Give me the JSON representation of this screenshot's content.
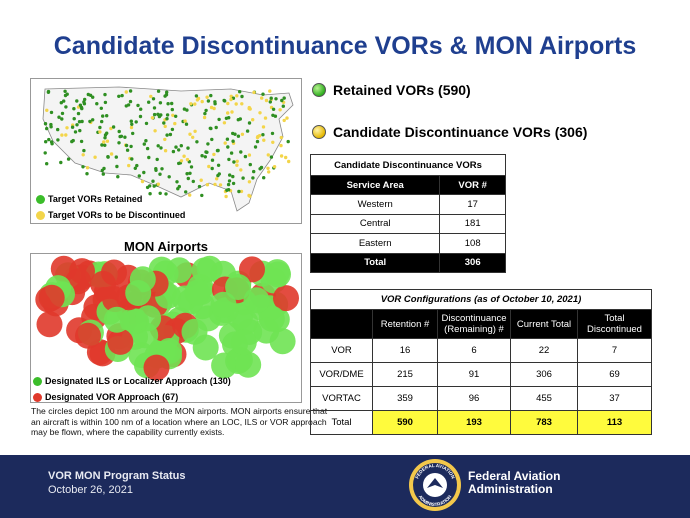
{
  "title": "Candidate Discontinuance VORs & MON Airports",
  "map1": {
    "legend_retained": "Target VORs Retained",
    "legend_discontinued": "Target VORs to be Discontinued"
  },
  "map2": {
    "title": "MON Airports",
    "legend_ils": "Designated ILS or Localizer Approach (130)",
    "legend_vor": "Designated VOR Approach (67)"
  },
  "caption": "The circles depict 100 nm around the MON airports. MON airports ensure that an aircraft is within 100 nm of a location where an LOC, ILS or VOR approach may be flown, where the capability currently exists.",
  "legend": {
    "retained": "Retained VORs (590)",
    "candidate": "Candidate Discontinuance VORs (306)"
  },
  "table1": {
    "caption": "Candidate Discontinuance VORs",
    "headers": [
      "Service Area",
      "VOR #"
    ],
    "rows": [
      [
        "Western",
        "17"
      ],
      [
        "Central",
        "181"
      ],
      [
        "Eastern",
        "108"
      ]
    ],
    "total": [
      "Total",
      "306"
    ]
  },
  "table2": {
    "caption": "VOR Configurations (as of October 10, 2021)",
    "headers": [
      "",
      "Retention #",
      "Discontinuance (Remaining) #",
      "Current Total",
      "Total Discontinued"
    ],
    "rows": [
      [
        "VOR",
        "16",
        "6",
        "22",
        "7"
      ],
      [
        "VOR/DME",
        "215",
        "91",
        "306",
        "69"
      ],
      [
        "VORTAC",
        "359",
        "96",
        "455",
        "37"
      ]
    ],
    "total": [
      "Total",
      "590",
      "193",
      "783",
      "113"
    ]
  },
  "footer": {
    "program": "VOR MON Program Status",
    "date": "October 26, 2021",
    "agency_line1": "Federal Aviation",
    "agency_line2": "Administration",
    "seal_top": "FEDERAL AVIATION",
    "seal_bottom": "ADMINISTRATION"
  },
  "colors": {
    "title": "#1f3f8f",
    "footer_bg": "#1c2a5c",
    "retained_green": "#3bbd2a",
    "candidate_yellow": "#f3d54a",
    "vor_red": "#e0392b",
    "total_highlight": "#fffb3d"
  }
}
